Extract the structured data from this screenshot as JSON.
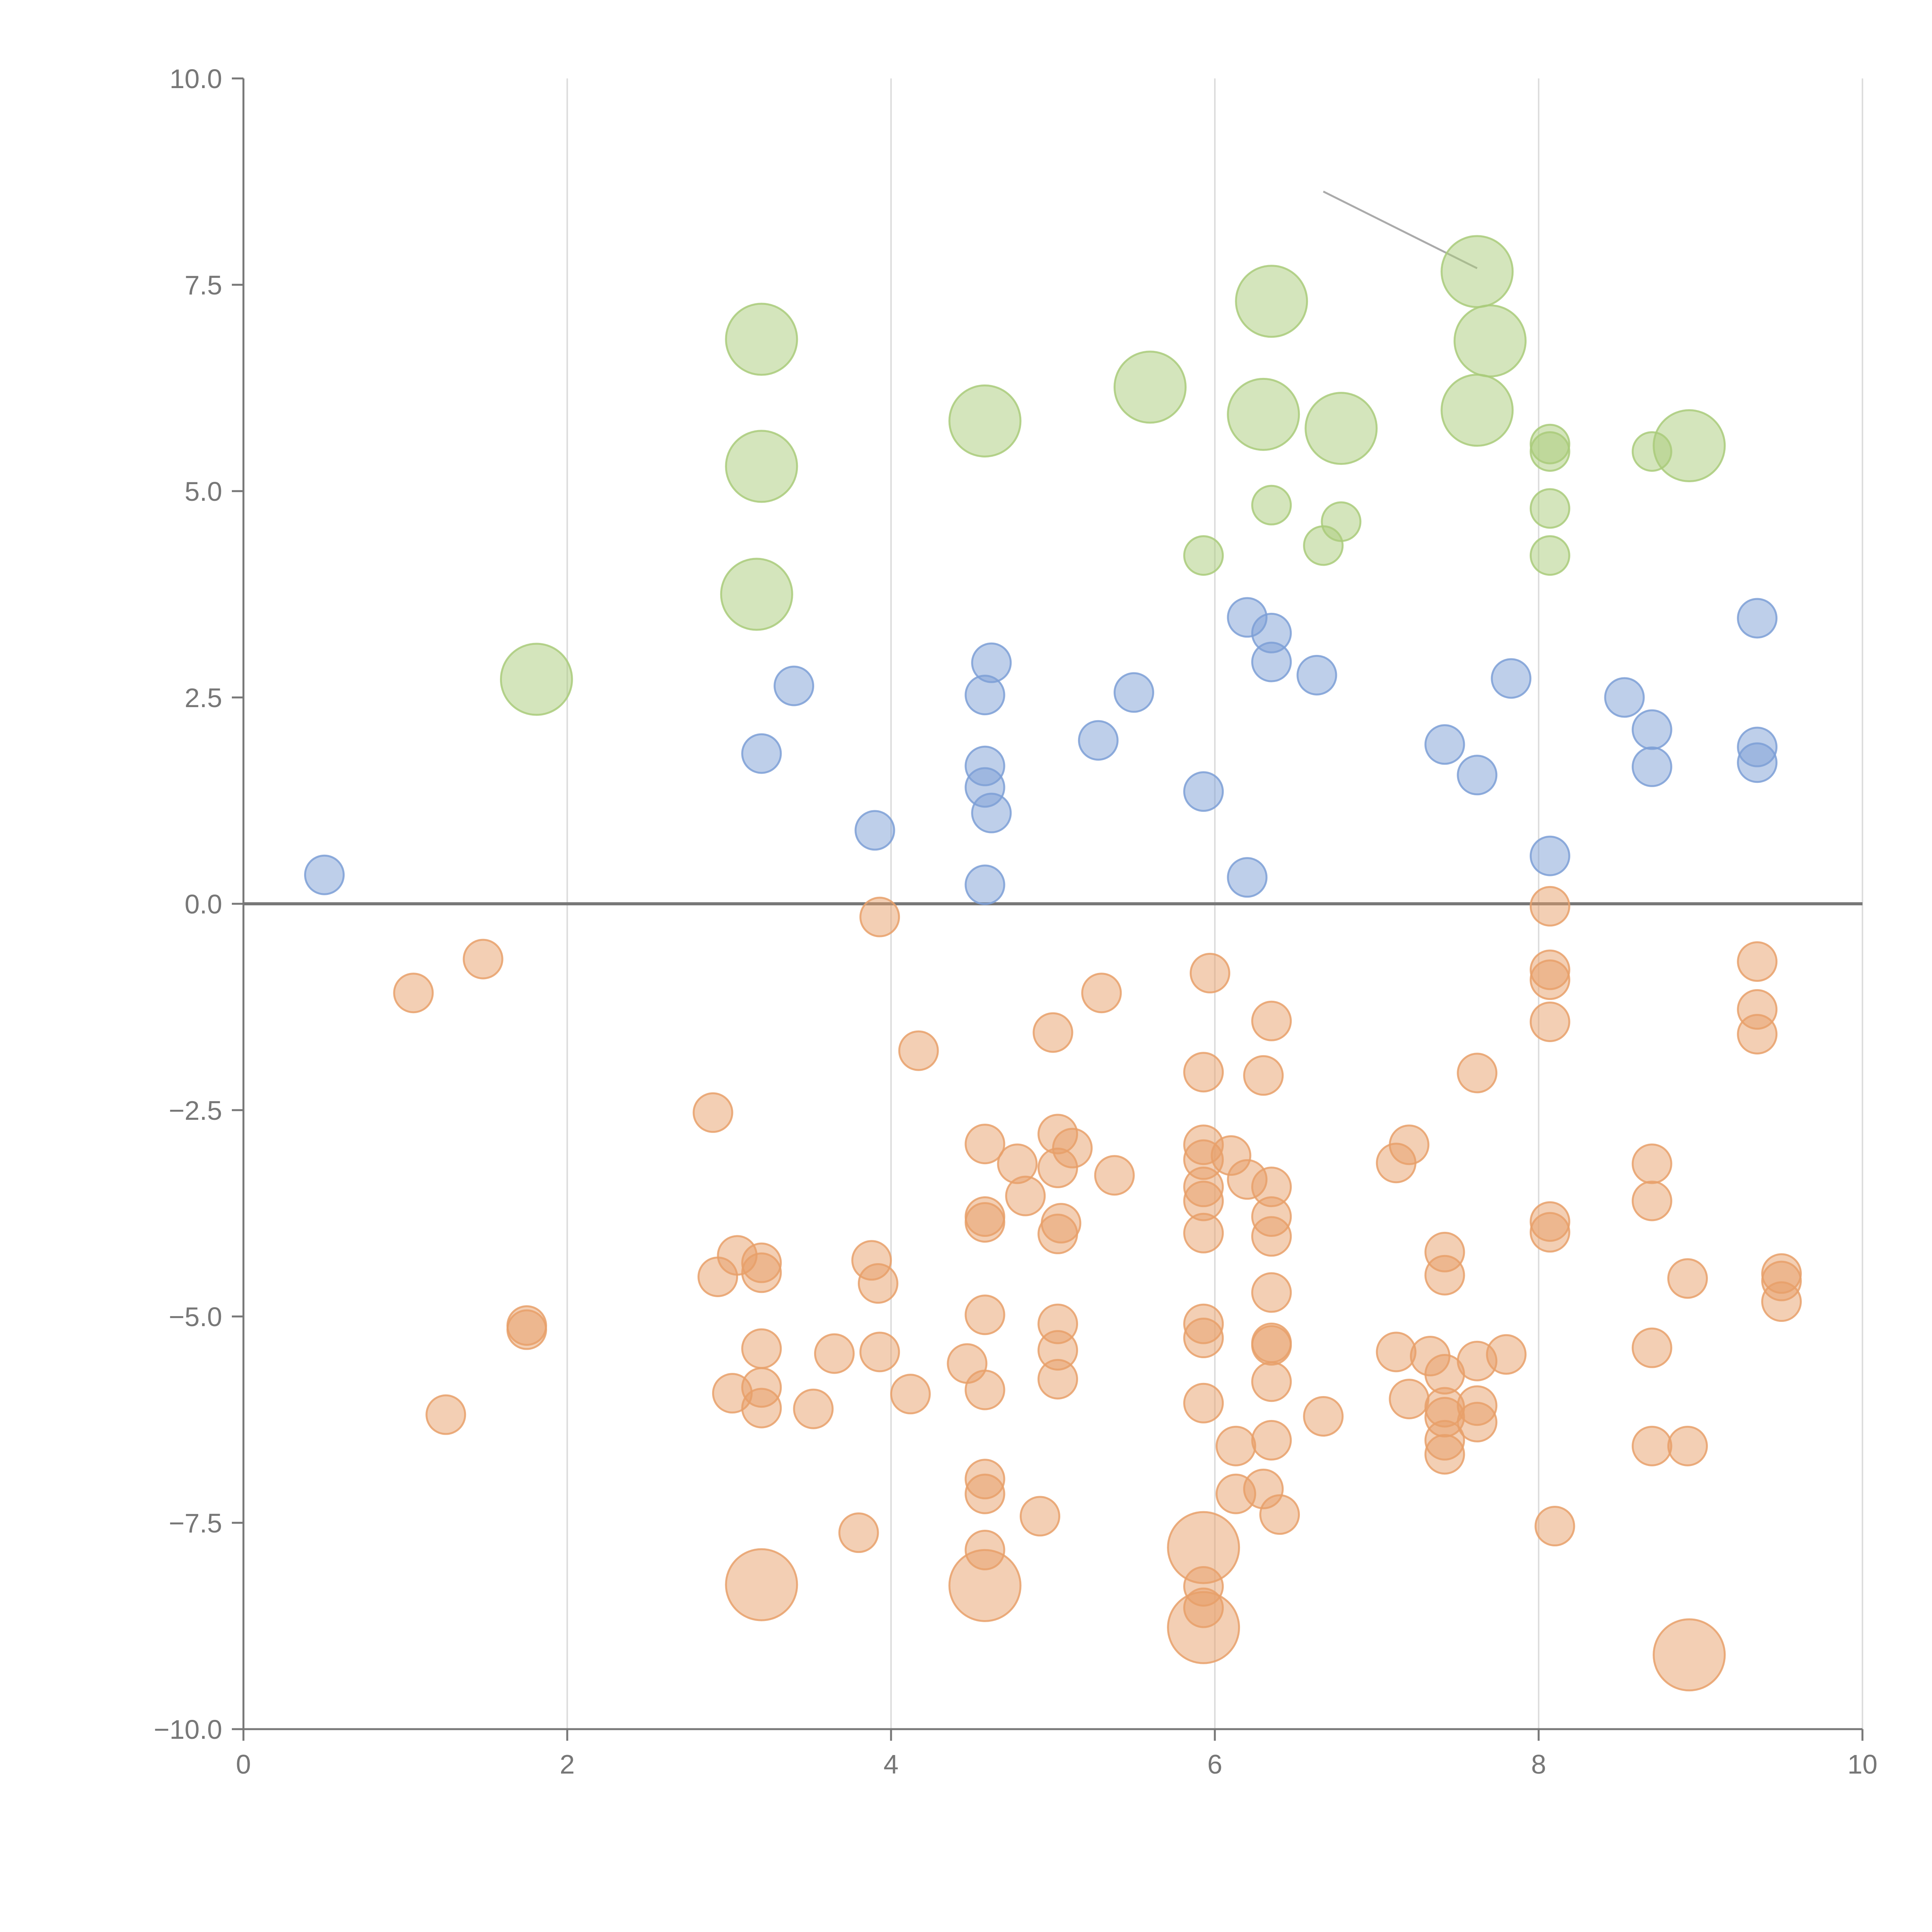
{
  "chart_data": {
    "type": "scatter",
    "title": "",
    "xlabel": "",
    "ylabel": "",
    "xlim": [
      0,
      10
    ],
    "ylim": [
      -10,
      10
    ],
    "x_ticks": [
      "0",
      "2",
      "4",
      "6",
      "8",
      "10"
    ],
    "y_ticks": [
      "−10.0",
      "−7.5",
      "−5.0",
      "−2.5",
      "0.0",
      "2.5",
      "5.0",
      "7.5",
      "10.0"
    ],
    "x_tick_values": [
      0,
      2,
      4,
      6,
      8,
      10
    ],
    "y_tick_values": [
      -10,
      -7.5,
      -5,
      -2.5,
      0,
      2.5,
      5,
      7.5,
      10
    ],
    "grid": "vertical",
    "zero_line": 0,
    "colors": {
      "green": "#a9cb7a",
      "blue": "#7d9fd6",
      "orange": "#e8a06a"
    },
    "annotation_line": {
      "x1": 6.67,
      "y1": 8.63,
      "x2": 7.62,
      "y2": 7.7
    },
    "series": [
      {
        "color": "green",
        "points": [
          {
            "x": 1.81,
            "y": 2.72,
            "s": 2
          },
          {
            "x": 3.2,
            "y": 6.84,
            "s": 2
          },
          {
            "x": 3.2,
            "y": 5.3,
            "s": 2
          },
          {
            "x": 3.17,
            "y": 3.75,
            "s": 2
          },
          {
            "x": 4.58,
            "y": 5.85,
            "s": 2
          },
          {
            "x": 5.6,
            "y": 6.26,
            "s": 2
          },
          {
            "x": 6.35,
            "y": 7.3,
            "s": 2
          },
          {
            "x": 6.3,
            "y": 5.93,
            "s": 2
          },
          {
            "x": 6.78,
            "y": 5.76,
            "s": 2
          },
          {
            "x": 7.62,
            "y": 7.66,
            "s": 2
          },
          {
            "x": 7.7,
            "y": 6.82,
            "s": 2
          },
          {
            "x": 7.62,
            "y": 5.98,
            "s": 2
          },
          {
            "x": 8.93,
            "y": 5.55,
            "s": 2
          },
          {
            "x": 8.07,
            "y": 5.57,
            "s": 1
          },
          {
            "x": 8.07,
            "y": 5.48,
            "s": 1
          },
          {
            "x": 8.7,
            "y": 5.48,
            "s": 1
          },
          {
            "x": 6.35,
            "y": 4.83,
            "s": 1
          },
          {
            "x": 6.78,
            "y": 4.63,
            "s": 1
          },
          {
            "x": 6.67,
            "y": 4.34,
            "s": 1
          },
          {
            "x": 5.93,
            "y": 4.22,
            "s": 1
          },
          {
            "x": 8.07,
            "y": 4.79,
            "s": 1
          },
          {
            "x": 8.07,
            "y": 4.22,
            "s": 1
          }
        ]
      },
      {
        "color": "blue",
        "points": [
          {
            "x": 0.5,
            "y": 0.35,
            "s": 1
          },
          {
            "x": 3.2,
            "y": 1.82,
            "s": 1
          },
          {
            "x": 3.4,
            "y": 2.64,
            "s": 1
          },
          {
            "x": 3.9,
            "y": 0.89,
            "s": 1
          },
          {
            "x": 4.58,
            "y": 2.53,
            "s": 1
          },
          {
            "x": 4.62,
            "y": 2.92,
            "s": 1
          },
          {
            "x": 4.58,
            "y": 1.67,
            "s": 1
          },
          {
            "x": 4.58,
            "y": 1.41,
            "s": 1
          },
          {
            "x": 4.62,
            "y": 1.1,
            "s": 1
          },
          {
            "x": 4.58,
            "y": 0.23,
            "s": 1
          },
          {
            "x": 5.28,
            "y": 1.98,
            "s": 1
          },
          {
            "x": 5.5,
            "y": 2.56,
            "s": 1
          },
          {
            "x": 5.93,
            "y": 1.36,
            "s": 1
          },
          {
            "x": 6.2,
            "y": 3.47,
            "s": 1
          },
          {
            "x": 6.35,
            "y": 3.28,
            "s": 1
          },
          {
            "x": 6.35,
            "y": 2.93,
            "s": 1
          },
          {
            "x": 6.63,
            "y": 2.77,
            "s": 1
          },
          {
            "x": 6.2,
            "y": 0.32,
            "s": 1
          },
          {
            "x": 7.42,
            "y": 1.93,
            "s": 1
          },
          {
            "x": 7.62,
            "y": 1.56,
            "s": 1
          },
          {
            "x": 7.83,
            "y": 2.73,
            "s": 1
          },
          {
            "x": 8.07,
            "y": 0.58,
            "s": 1
          },
          {
            "x": 8.53,
            "y": 2.5,
            "s": 1
          },
          {
            "x": 8.7,
            "y": 2.11,
            "s": 1
          },
          {
            "x": 8.7,
            "y": 1.66,
            "s": 1
          },
          {
            "x": 9.35,
            "y": 3.46,
            "s": 1
          },
          {
            "x": 9.35,
            "y": 1.9,
            "s": 1
          },
          {
            "x": 9.35,
            "y": 1.71,
            "s": 1
          }
        ]
      },
      {
        "color": "orange",
        "points": [
          {
            "x": 1.05,
            "y": -1.08,
            "s": 1
          },
          {
            "x": 1.48,
            "y": -0.67,
            "s": 1
          },
          {
            "x": 1.25,
            "y": -6.19,
            "s": 1
          },
          {
            "x": 1.75,
            "y": -5.11,
            "s": 1
          },
          {
            "x": 1.75,
            "y": -5.16,
            "s": 1
          },
          {
            "x": 2.9,
            "y": -2.53,
            "s": 1
          },
          {
            "x": 2.93,
            "y": -4.52,
            "s": 1
          },
          {
            "x": 3.05,
            "y": -4.26,
            "s": 1
          },
          {
            "x": 3.2,
            "y": -4.35,
            "s": 1
          },
          {
            "x": 3.2,
            "y": -4.47,
            "s": 1
          },
          {
            "x": 3.2,
            "y": -5.39,
            "s": 1
          },
          {
            "x": 3.02,
            "y": -5.93,
            "s": 1
          },
          {
            "x": 3.2,
            "y": -5.86,
            "s": 1
          },
          {
            "x": 3.2,
            "y": -6.11,
            "s": 1
          },
          {
            "x": 3.52,
            "y": -6.12,
            "s": 1
          },
          {
            "x": 3.65,
            "y": -5.45,
            "s": 1
          },
          {
            "x": 3.2,
            "y": -8.25,
            "s": 2
          },
          {
            "x": 3.8,
            "y": -7.62,
            "s": 1
          },
          {
            "x": 3.88,
            "y": -4.32,
            "s": 1
          },
          {
            "x": 3.92,
            "y": -4.6,
            "s": 1
          },
          {
            "x": 3.93,
            "y": -5.43,
            "s": 1
          },
          {
            "x": 4.12,
            "y": -5.94,
            "s": 1
          },
          {
            "x": 3.93,
            "y": -0.16,
            "s": 1
          },
          {
            "x": 4.17,
            "y": -1.78,
            "s": 1
          },
          {
            "x": 4.47,
            "y": -5.57,
            "s": 1
          },
          {
            "x": 4.58,
            "y": -2.91,
            "s": 1
          },
          {
            "x": 4.58,
            "y": -3.79,
            "s": 1
          },
          {
            "x": 4.58,
            "y": -3.86,
            "s": 1
          },
          {
            "x": 4.58,
            "y": -4.98,
            "s": 1
          },
          {
            "x": 4.58,
            "y": -5.89,
            "s": 1
          },
          {
            "x": 4.58,
            "y": -6.97,
            "s": 1
          },
          {
            "x": 4.58,
            "y": -7.15,
            "s": 1
          },
          {
            "x": 4.58,
            "y": -7.83,
            "s": 1
          },
          {
            "x": 4.58,
            "y": -8.26,
            "s": 2
          },
          {
            "x": 4.78,
            "y": -3.15,
            "s": 1
          },
          {
            "x": 4.83,
            "y": -3.54,
            "s": 1
          },
          {
            "x": 4.92,
            "y": -7.42,
            "s": 1
          },
          {
            "x": 5.0,
            "y": -1.56,
            "s": 1
          },
          {
            "x": 5.03,
            "y": -2.79,
            "s": 1
          },
          {
            "x": 5.03,
            "y": -3.2,
            "s": 1
          },
          {
            "x": 5.12,
            "y": -2.96,
            "s": 1
          },
          {
            "x": 5.05,
            "y": -3.87,
            "s": 1
          },
          {
            "x": 5.03,
            "y": -4.0,
            "s": 1
          },
          {
            "x": 5.03,
            "y": -5.09,
            "s": 1
          },
          {
            "x": 5.03,
            "y": -5.41,
            "s": 1
          },
          {
            "x": 5.03,
            "y": -5.76,
            "s": 1
          },
          {
            "x": 5.3,
            "y": -1.08,
            "s": 1
          },
          {
            "x": 5.38,
            "y": -3.29,
            "s": 1
          },
          {
            "x": 5.93,
            "y": -2.04,
            "s": 1
          },
          {
            "x": 5.93,
            "y": -2.92,
            "s": 1
          },
          {
            "x": 5.93,
            "y": -3.1,
            "s": 1
          },
          {
            "x": 5.93,
            "y": -3.43,
            "s": 1
          },
          {
            "x": 5.93,
            "y": -3.6,
            "s": 1
          },
          {
            "x": 5.93,
            "y": -3.99,
            "s": 1
          },
          {
            "x": 5.93,
            "y": -5.09,
            "s": 1
          },
          {
            "x": 5.93,
            "y": -5.26,
            "s": 1
          },
          {
            "x": 5.93,
            "y": -6.05,
            "s": 1
          },
          {
            "x": 5.93,
            "y": -7.8,
            "s": 2
          },
          {
            "x": 5.93,
            "y": -8.27,
            "s": 1
          },
          {
            "x": 5.93,
            "y": -8.53,
            "s": 1
          },
          {
            "x": 5.93,
            "y": -8.77,
            "s": 2
          },
          {
            "x": 5.97,
            "y": -0.84,
            "s": 1
          },
          {
            "x": 6.1,
            "y": -3.05,
            "s": 1
          },
          {
            "x": 6.2,
            "y": -3.34,
            "s": 1
          },
          {
            "x": 6.3,
            "y": -2.08,
            "s": 1
          },
          {
            "x": 6.35,
            "y": -1.42,
            "s": 1
          },
          {
            "x": 6.35,
            "y": -3.43,
            "s": 1
          },
          {
            "x": 6.35,
            "y": -3.79,
            "s": 1
          },
          {
            "x": 6.35,
            "y": -4.03,
            "s": 1
          },
          {
            "x": 6.35,
            "y": -4.71,
            "s": 1
          },
          {
            "x": 6.35,
            "y": -5.32,
            "s": 1
          },
          {
            "x": 6.35,
            "y": -5.35,
            "s": 1
          },
          {
            "x": 6.35,
            "y": -5.79,
            "s": 1
          },
          {
            "x": 6.35,
            "y": -6.5,
            "s": 1
          },
          {
            "x": 6.13,
            "y": -6.57,
            "s": 1
          },
          {
            "x": 6.13,
            "y": -7.15,
            "s": 1
          },
          {
            "x": 6.3,
            "y": -7.09,
            "s": 1
          },
          {
            "x": 6.4,
            "y": -7.4,
            "s": 1
          },
          {
            "x": 6.67,
            "y": -6.21,
            "s": 1
          },
          {
            "x": 7.12,
            "y": -3.14,
            "s": 1
          },
          {
            "x": 7.2,
            "y": -2.92,
            "s": 1
          },
          {
            "x": 7.12,
            "y": -5.43,
            "s": 1
          },
          {
            "x": 7.2,
            "y": -6.0,
            "s": 1
          },
          {
            "x": 7.33,
            "y": -5.48,
            "s": 1
          },
          {
            "x": 7.42,
            "y": -4.22,
            "s": 1
          },
          {
            "x": 7.42,
            "y": -4.5,
            "s": 1
          },
          {
            "x": 7.42,
            "y": -5.7,
            "s": 1
          },
          {
            "x": 7.42,
            "y": -6.1,
            "s": 1
          },
          {
            "x": 7.42,
            "y": -6.22,
            "s": 1
          },
          {
            "x": 7.42,
            "y": -6.5,
            "s": 1
          },
          {
            "x": 7.42,
            "y": -6.67,
            "s": 1
          },
          {
            "x": 7.62,
            "y": -2.05,
            "s": 1
          },
          {
            "x": 7.62,
            "y": -5.54,
            "s": 1
          },
          {
            "x": 7.62,
            "y": -6.08,
            "s": 1
          },
          {
            "x": 7.62,
            "y": -6.28,
            "s": 1
          },
          {
            "x": 7.8,
            "y": -5.46,
            "s": 1
          },
          {
            "x": 8.07,
            "y": -0.03,
            "s": 1
          },
          {
            "x": 8.07,
            "y": -0.8,
            "s": 1
          },
          {
            "x": 8.07,
            "y": -0.92,
            "s": 1
          },
          {
            "x": 8.07,
            "y": -1.43,
            "s": 1
          },
          {
            "x": 8.07,
            "y": -3.85,
            "s": 1
          },
          {
            "x": 8.07,
            "y": -3.98,
            "s": 1
          },
          {
            "x": 8.1,
            "y": -7.54,
            "s": 1
          },
          {
            "x": 8.7,
            "y": -3.15,
            "s": 1
          },
          {
            "x": 8.7,
            "y": -3.6,
            "s": 1
          },
          {
            "x": 8.7,
            "y": -5.38,
            "s": 1
          },
          {
            "x": 8.7,
            "y": -6.57,
            "s": 1
          },
          {
            "x": 8.92,
            "y": -4.54,
            "s": 1
          },
          {
            "x": 8.92,
            "y": -6.57,
            "s": 1
          },
          {
            "x": 8.93,
            "y": -9.1,
            "s": 2
          },
          {
            "x": 9.35,
            "y": -0.7,
            "s": 1
          },
          {
            "x": 9.35,
            "y": -1.28,
            "s": 1
          },
          {
            "x": 9.35,
            "y": -1.58,
            "s": 1
          },
          {
            "x": 9.5,
            "y": -4.48,
            "s": 1
          },
          {
            "x": 9.5,
            "y": -4.57,
            "s": 1
          },
          {
            "x": 9.5,
            "y": -4.82,
            "s": 1
          }
        ]
      }
    ]
  }
}
